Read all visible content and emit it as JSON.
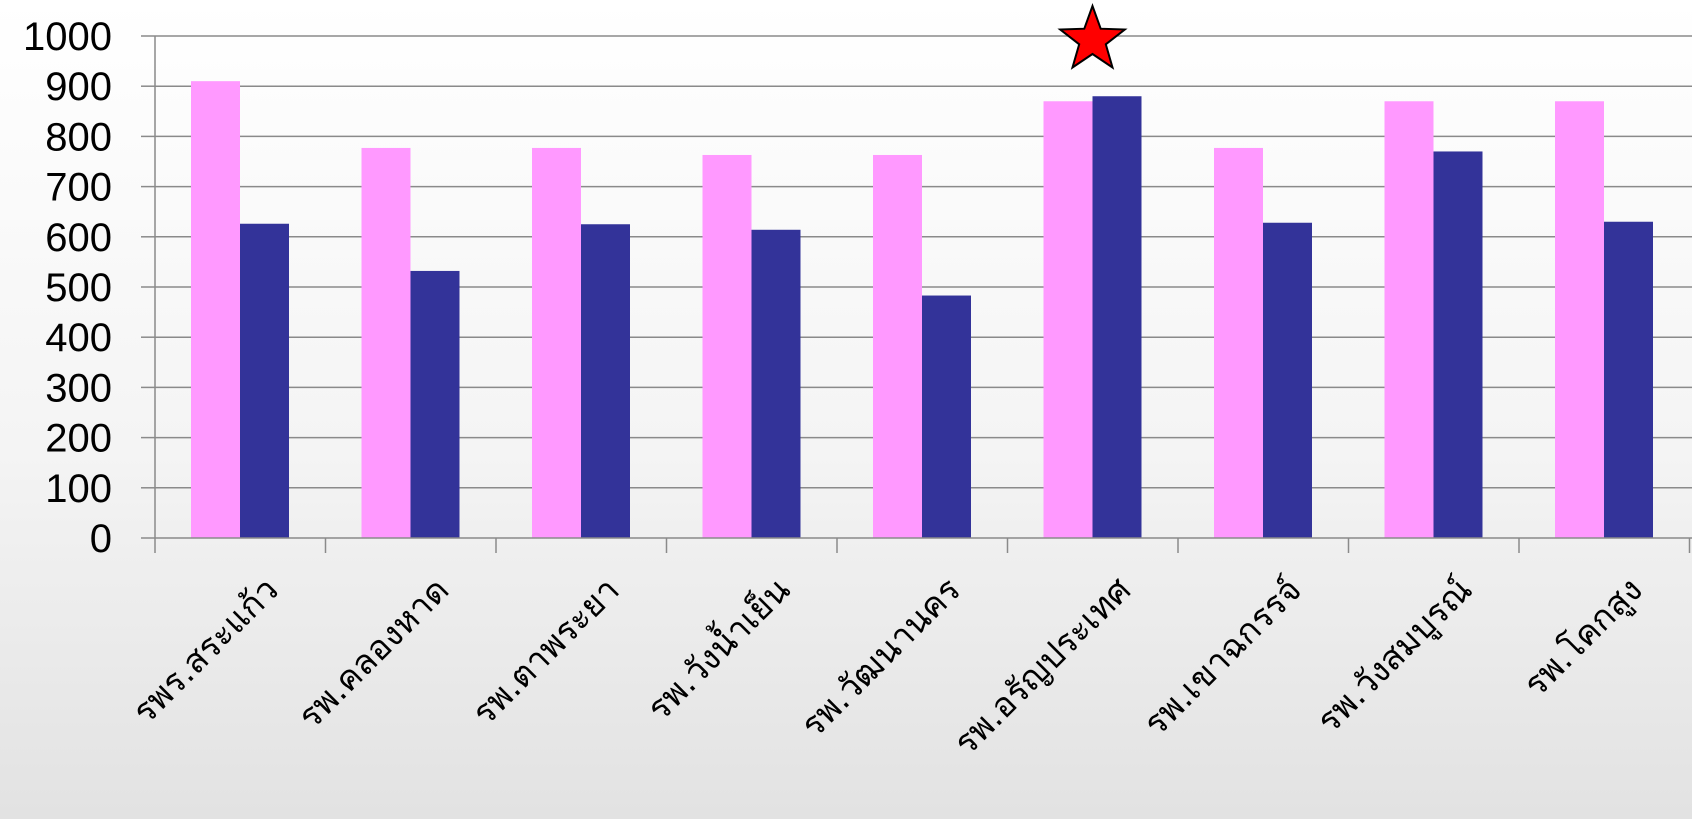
{
  "chart_data": {
    "type": "bar",
    "categories": [
      "รพร.สระแก้ว",
      "รพ.คลองหาด",
      "รพ.ตาพระยา",
      "รพ.วังน้ำเย็น",
      "รพ.วัฒนานคร",
      "รพ.อรัญประเทศ",
      "รพ.เขาฉกรรจ์",
      "รพ.วังสมบูรณ์",
      "รพ.โคกสูง"
    ],
    "series": [
      {
        "color": "#ff99ff",
        "values": [
          910,
          777,
          777,
          763,
          763,
          870,
          777,
          870,
          870
        ]
      },
      {
        "color": "#333399",
        "values": [
          626,
          532,
          625,
          614,
          483,
          880,
          628,
          770,
          630
        ]
      }
    ],
    "ylim": [
      0,
      1000
    ],
    "yticks": [
      0,
      100,
      200,
      300,
      400,
      500,
      600,
      700,
      800,
      900,
      1000
    ],
    "grid": true,
    "legend": "none",
    "title": "",
    "xlabel": "",
    "ylabel": "",
    "annotations": [
      {
        "type": "star-marker",
        "category_index": 5,
        "color": "#ff0000"
      }
    ]
  }
}
